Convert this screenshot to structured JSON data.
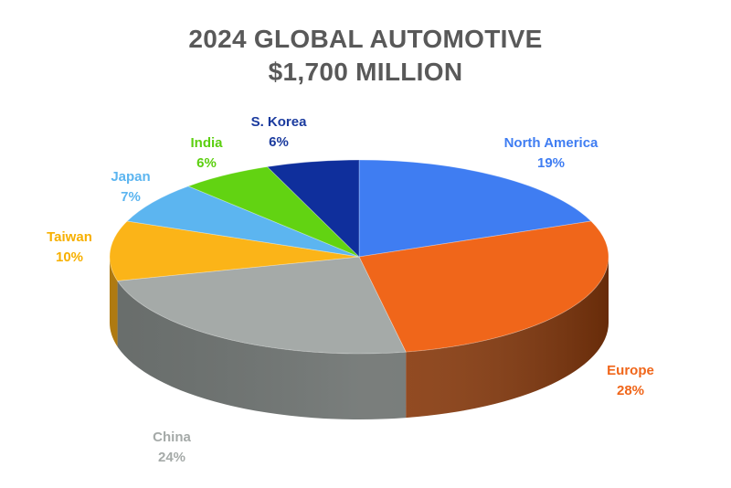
{
  "chart_data": {
    "type": "pie",
    "title": "2024 GLOBAL AUTOMOTIVE",
    "subtitle": "$1,700 MILLION",
    "slices": [
      {
        "label": "North America",
        "percent_label": "19%",
        "value": 19,
        "color": "#3f7df2",
        "side": "#2a5bb8",
        "label_color": "#3f7df2"
      },
      {
        "label": "Europe",
        "percent_label": "28%",
        "value": 28,
        "color": "#f0661a",
        "side": "#8a3a0c",
        "label_color": "#f0661a"
      },
      {
        "label": "China",
        "percent_label": "24%",
        "value": 24,
        "color": "#a5aaa8",
        "side": "#6e7371",
        "label_color": "#a5aaa8"
      },
      {
        "label": "Taiwan",
        "percent_label": "10%",
        "value": 10,
        "color": "#fbb418",
        "side": "#b88012",
        "label_color": "#f7b000"
      },
      {
        "label": "Japan",
        "percent_label": "7%",
        "value": 7,
        "color": "#5cb5f0",
        "side": "#3d7fab",
        "label_color": "#5cb5f0"
      },
      {
        "label": "India",
        "percent_label": "6%",
        "value": 6,
        "color": "#62d312",
        "side": "#3f8c0a",
        "label_color": "#5ccf10"
      },
      {
        "label": "S. Korea",
        "percent_label": "6%",
        "value": 6,
        "color": "#0f2f9c",
        "side": "#0a1f66",
        "label_color": "#1a3a9e"
      }
    ]
  }
}
